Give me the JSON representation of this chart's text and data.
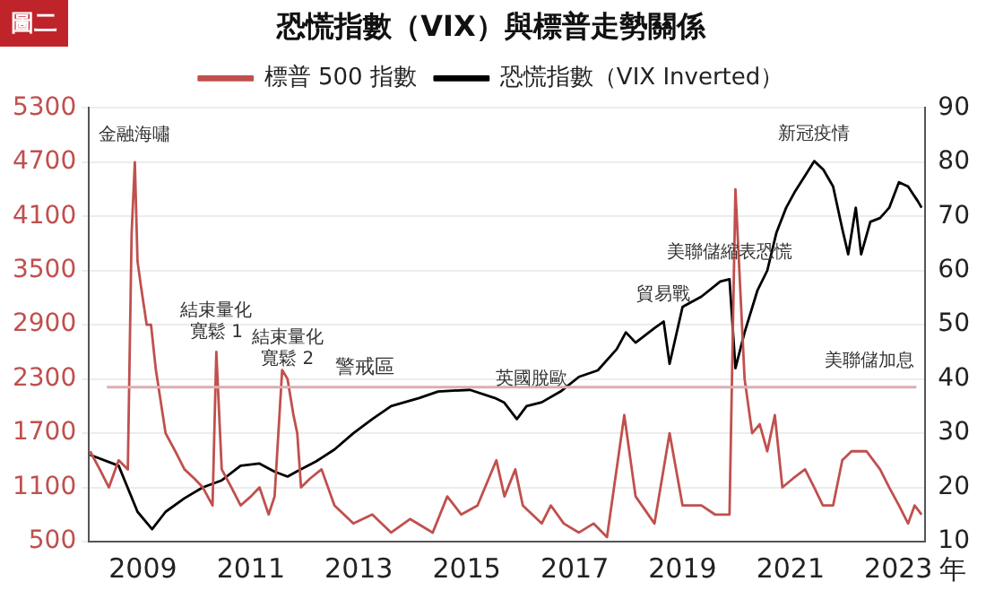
{
  "chart_data": {
    "type": "line",
    "title": "恐慌指數（VIX）與標普走勢關係",
    "xlabel": "年",
    "annotations": [
      "圖二",
      {
        "text": "金融海嘯",
        "x": 2008.85,
        "y": 4700
      },
      {
        "text": "結束量化寬鬆 1",
        "x": 2010.36,
        "y": 2600
      },
      {
        "text": "結束量化寬鬆 2",
        "x": 2011.68,
        "y": 2300
      },
      {
        "text": "英國脫歐",
        "x": 2016.2,
        "y": 2000
      },
      {
        "text": "貿易戰",
        "x": 2018.65,
        "y": 2936
      },
      {
        "text": "美聯儲縮表恐慌",
        "x": 2019.87,
        "y": 3404
      },
      {
        "text": "新冠疫情",
        "x": 2021.44,
        "y": 4712
      },
      {
        "text": "美聯儲加息",
        "x": 2022.9,
        "y": 2200
      }
    ],
    "series": [
      {
        "name": "標普 500 指數",
        "color": "#c0504d",
        "axis": "y",
        "x": [
          2008.02,
          2008.2,
          2008.37,
          2008.55,
          2008.72,
          2008.79,
          2008.85,
          2008.9,
          2008.97,
          2009.07,
          2009.15,
          2009.24,
          2009.42,
          2009.6,
          2009.77,
          2009.95,
          2010.11,
          2010.29,
          2010.36,
          2010.46,
          2010.64,
          2010.81,
          2011.0,
          2011.16,
          2011.33,
          2011.44,
          2011.58,
          2011.68,
          2011.79,
          2011.86,
          2011.93,
          2012.1,
          2012.31,
          2012.55,
          2012.9,
          2013.25,
          2013.6,
          2013.95,
          2014.37,
          2014.64,
          2014.9,
          2015.2,
          2015.55,
          2015.7,
          2015.9,
          2016.04,
          2016.39,
          2016.56,
          2016.8,
          2017.08,
          2017.35,
          2017.6,
          2017.92,
          2018.13,
          2018.48,
          2018.76,
          2019.0,
          2019.35,
          2019.6,
          2019.87,
          2019.98,
          2020.15,
          2020.29,
          2020.43,
          2020.57,
          2020.71,
          2020.85,
          2021.05,
          2021.27,
          2021.44,
          2021.6,
          2021.79,
          2021.96,
          2022.13,
          2022.41,
          2022.66,
          2022.83,
          2023.01,
          2023.18,
          2023.3,
          2023.43
        ],
        "values": [
          1500,
          1300,
          1100,
          1400,
          1300,
          3900,
          4700,
          3600,
          3300,
          2900,
          2900,
          2400,
          1700,
          1500,
          1300,
          1200,
          1100,
          900,
          2600,
          1300,
          1100,
          900,
          1000,
          1100,
          800,
          1000,
          2400,
          2300,
          1900,
          1700,
          1100,
          1200,
          1300,
          900,
          700,
          800,
          600,
          750,
          600,
          1000,
          800,
          900,
          1400,
          1000,
          1300,
          900,
          700,
          900,
          700,
          600,
          700,
          550,
          1900,
          1000,
          700,
          1700,
          900,
          900,
          800,
          800,
          4400,
          2300,
          1700,
          1800,
          1500,
          1900,
          1100,
          1200,
          1300,
          1100,
          900,
          900,
          1400,
          1500,
          1500,
          1300,
          1100,
          900,
          700,
          900,
          800
        ]
      },
      {
        "name": "恐慌指數（VIX Inverted）",
        "color": "#000000",
        "axis": "y2",
        "x": [
          2008.02,
          2008.55,
          2008.9,
          2009.17,
          2009.42,
          2009.77,
          2010.11,
          2010.46,
          2010.81,
          2011.16,
          2011.44,
          2011.68,
          2011.86,
          2012.21,
          2012.55,
          2012.9,
          2013.25,
          2013.6,
          2014.12,
          2014.47,
          2015.06,
          2015.52,
          2015.69,
          2015.93,
          2016.11,
          2016.39,
          2016.74,
          2017.08,
          2017.43,
          2017.78,
          2017.95,
          2018.13,
          2018.48,
          2018.65,
          2018.76,
          2019.0,
          2019.35,
          2019.7,
          2019.87,
          2019.98,
          2020.15,
          2020.39,
          2020.57,
          2020.74,
          2020.92,
          2021.09,
          2021.27,
          2021.44,
          2021.61,
          2021.79,
          2021.96,
          2022.07,
          2022.21,
          2022.31,
          2022.48,
          2022.66,
          2022.83,
          2023.01,
          2023.18,
          2023.36,
          2023.43
        ],
        "values": [
          26,
          24,
          15.5,
          12.3,
          15.5,
          18,
          20,
          21.3,
          24,
          24.4,
          22.9,
          22,
          23,
          24.8,
          27,
          30,
          32.6,
          35,
          36.5,
          37.7,
          38,
          36.5,
          35.7,
          32.6,
          35,
          35.7,
          37.7,
          40.4,
          41.6,
          45.5,
          48.6,
          46.7,
          49.4,
          50.6,
          42.8,
          53.3,
          55.2,
          58,
          58.4,
          42,
          48.6,
          56.4,
          60,
          67,
          71.6,
          74.7,
          77.5,
          80.2,
          78.6,
          75.5,
          67.7,
          63,
          71.6,
          63,
          69,
          69.7,
          71.6,
          76.3,
          75.5,
          72.8,
          71.6
        ]
      }
    ],
    "xlim": [
      2008,
      2023.5
    ],
    "xticks": [
      2009,
      2011,
      2013,
      2015,
      2017,
      2019,
      2021,
      2023
    ],
    "ylim": [
      500,
      5300
    ],
    "yticks": [
      500,
      1100,
      1700,
      2300,
      2900,
      3500,
      4100,
      4700,
      5300
    ],
    "y2lim": [
      10,
      90
    ],
    "y2ticks": [
      10,
      20,
      30,
      40,
      50,
      60,
      70,
      80,
      90
    ],
    "ref_lines": [
      {
        "axis": "y2",
        "value": 38.5,
        "label": "警戒區",
        "color": "#dcaeb2"
      }
    ],
    "grid": "y",
    "legend": "top"
  }
}
